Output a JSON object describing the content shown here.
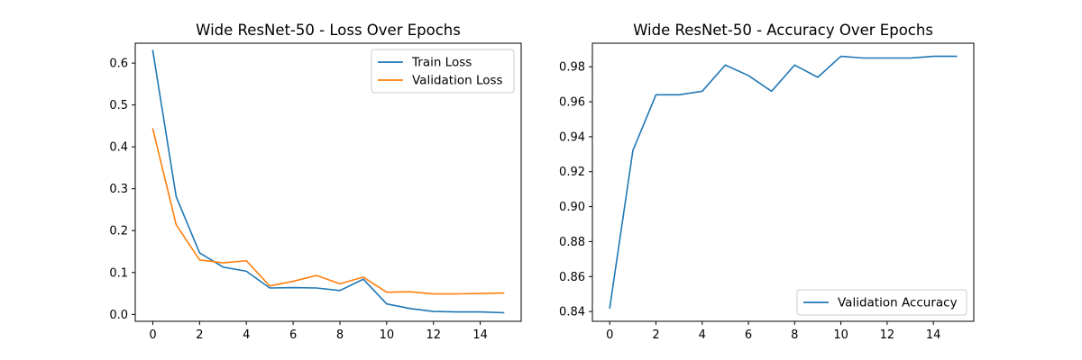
{
  "colors": {
    "blue": "#1f77b4",
    "orange": "#ff7f0e"
  },
  "chart_data": [
    {
      "type": "line",
      "title": "Wide ResNet-50 - Loss Over Epochs",
      "xlabel": "",
      "ylabel": "",
      "xlim": [
        -0.75,
        15.75
      ],
      "ylim": [
        -0.0165,
        0.6475
      ],
      "xticks": [
        0,
        2,
        4,
        6,
        8,
        10,
        12,
        14
      ],
      "xtick_labels": [
        "0",
        "2",
        "4",
        "6",
        "8",
        "10",
        "12",
        "14"
      ],
      "yticks": [
        0.0,
        0.1,
        0.2,
        0.3,
        0.4,
        0.5,
        0.6
      ],
      "ytick_labels": [
        "0.0",
        "0.1",
        "0.2",
        "0.3",
        "0.4",
        "0.5",
        "0.6"
      ],
      "legend_position": "top-right",
      "grid": false,
      "x": [
        0,
        1,
        2,
        3,
        4,
        5,
        6,
        7,
        8,
        9,
        10,
        11,
        12,
        13,
        14,
        15
      ],
      "series": [
        {
          "name": "Train Loss",
          "color": "#1f77b4",
          "values": [
            0.63,
            0.281,
            0.147,
            0.113,
            0.103,
            0.063,
            0.064,
            0.063,
            0.057,
            0.084,
            0.025,
            0.014,
            0.007,
            0.006,
            0.006,
            0.004
          ]
        },
        {
          "name": "Validation Loss",
          "color": "#ff7f0e",
          "values": [
            0.443,
            0.214,
            0.13,
            0.123,
            0.128,
            0.068,
            0.079,
            0.093,
            0.073,
            0.089,
            0.053,
            0.054,
            0.049,
            0.049,
            0.05,
            0.051
          ]
        }
      ]
    },
    {
      "type": "line",
      "title": "Wide ResNet-50 - Accuracy Over Epochs",
      "xlabel": "",
      "ylabel": "",
      "xlim": [
        -0.75,
        15.75
      ],
      "ylim": [
        0.8344,
        0.9935
      ],
      "xticks": [
        0,
        2,
        4,
        6,
        8,
        10,
        12,
        14
      ],
      "xtick_labels": [
        "0",
        "2",
        "4",
        "6",
        "8",
        "10",
        "12",
        "14"
      ],
      "yticks": [
        0.84,
        0.86,
        0.88,
        0.9,
        0.92,
        0.94,
        0.96,
        0.98
      ],
      "ytick_labels": [
        "0.84",
        "0.86",
        "0.88",
        "0.90",
        "0.92",
        "0.94",
        "0.96",
        "0.98"
      ],
      "legend_position": "bottom-right",
      "grid": false,
      "x": [
        0,
        1,
        2,
        3,
        4,
        5,
        6,
        7,
        8,
        9,
        10,
        11,
        12,
        13,
        14,
        15
      ],
      "series": [
        {
          "name": "Validation Accuracy",
          "color": "#1f77b4",
          "values": [
            0.842,
            0.932,
            0.964,
            0.964,
            0.966,
            0.981,
            0.975,
            0.966,
            0.981,
            0.974,
            0.986,
            0.985,
            0.985,
            0.985,
            0.986,
            0.986
          ]
        }
      ]
    }
  ]
}
